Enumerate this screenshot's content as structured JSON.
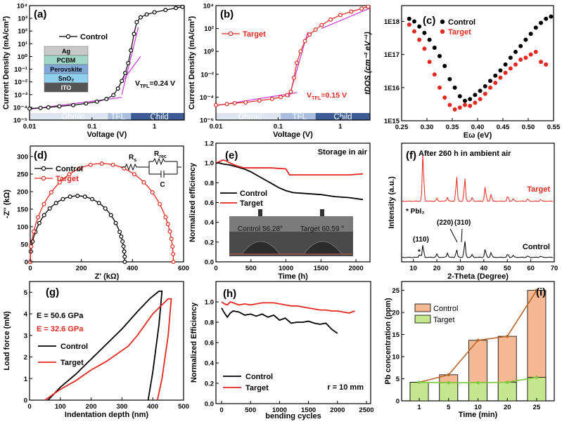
{
  "panels": {
    "a": {
      "letter": "(a)",
      "xlabel": "Voltage (V)",
      "ylabel": "Current Density (mA/cm²)",
      "xticks": [
        "0.01",
        "0.1",
        "1"
      ],
      "yticks": [
        "10⁻⁵",
        "10⁻⁴",
        "10⁻³",
        "10⁻²",
        "10⁻¹",
        "10⁰",
        "10¹",
        "10²",
        "10³",
        "10⁴"
      ],
      "legend": "Control",
      "vtfl": "V_TFL=0.24 V",
      "regions": [
        "Ohmic",
        "TFL",
        "Child"
      ],
      "stack": [
        "Ag",
        "PCBM",
        "Perovskite",
        "SnO₂",
        "ITO"
      ],
      "stack_colors": [
        "#c8c8c8",
        "#9fd7c9",
        "#7fa9d8",
        "#8fd0f0",
        "#555555"
      ]
    },
    "b": {
      "letter": "(b)",
      "xlabel": "Voltage (V)",
      "ylabel": "Current Density (mA/cm²)",
      "xticks": [
        "0.01",
        "0.1",
        "1"
      ],
      "yticks": [
        "10⁻⁶",
        "10⁻⁴",
        "10⁻²",
        "10⁰",
        "10²",
        "10⁴"
      ],
      "legend": "Target",
      "vtfl": "V_TFL=0.15 V",
      "regions": [
        "Ohmic",
        "TFL",
        "Child"
      ]
    },
    "c": {
      "letter": "(c)",
      "xlabel": "Eω (eV)",
      "ylabel": "tDOS (cm⁻³ eV⁻¹)",
      "xticks": [
        "0.25",
        "0.30",
        "0.35",
        "0.40",
        "0.45",
        "0.50",
        "0.55"
      ],
      "yticks": [
        "1E15",
        "1E16",
        "1E17",
        "1E18"
      ],
      "legend": [
        "Control",
        "Target"
      ]
    },
    "d": {
      "letter": "(d)",
      "xlabel": "Z' (kΩ)",
      "ylabel": "-Z'' (kΩ)",
      "xticks": [
        "0",
        "200",
        "400",
        "600"
      ],
      "yticks": [
        "0",
        "50",
        "100",
        "150",
        "200",
        "250",
        "300"
      ],
      "legend": [
        "Control",
        "Target"
      ],
      "circuit": {
        "rs": "R_s",
        "rrec": "R_rec",
        "c": "C"
      }
    },
    "e": {
      "letter": "(e)",
      "title": "Storage in air",
      "xlabel": "Time (h)",
      "ylabel": "Normalized efficiency",
      "xticks": [
        "0",
        "500",
        "1000",
        "1500",
        "2000"
      ],
      "yticks": [
        "0.0",
        "0.2",
        "0.4",
        "0.6",
        "0.8",
        "1.0",
        "1.2"
      ],
      "legend": [
        "Control",
        "Target"
      ],
      "photo_labels": [
        "Control  56.28°",
        "Target  60.59 °"
      ]
    },
    "f": {
      "letter": "(f)",
      "title": "After 260 h in ambient air",
      "xlabel": "2-Theta (Degree)",
      "ylabel": "Intensity (a.u.)",
      "xticks": [
        "10",
        "20",
        "30",
        "40",
        "50",
        "60",
        "70"
      ],
      "series_labels": [
        "Target",
        "Control"
      ],
      "pbi2": "* PbI₂",
      "peaks": [
        "(110)",
        "(220)",
        "(310)"
      ]
    },
    "g": {
      "letter": "(g)",
      "xlabel": "Indentation depth (nm)",
      "ylabel": "Load force (mN)",
      "xticks": [
        "0",
        "100",
        "200",
        "300",
        "400",
        "500"
      ],
      "yticks": [
        "0",
        "1",
        "2",
        "3",
        "4",
        "5"
      ],
      "e_control": "E = 50.6 GPa",
      "e_target": "E = 32.6 GPa",
      "legend": [
        "Control",
        "Target"
      ]
    },
    "h": {
      "letter": "(h)",
      "xlabel": "bending cycles",
      "ylabel": "Normalized Efficiency",
      "xticks": [
        "0",
        "500",
        "1000",
        "1500",
        "2000",
        "2500"
      ],
      "yticks": [
        "0.0",
        "0.2",
        "0.4",
        "0.6",
        "0.8",
        "1.0"
      ],
      "legend": [
        "Control",
        "Target"
      ],
      "note": "r = 10 mm"
    },
    "i": {
      "letter": "(i)",
      "xlabel": "Time (min)",
      "ylabel": "Pb concentration (ppm)",
      "xticks": [
        "1",
        "5",
        "10",
        "20",
        "25"
      ],
      "yticks": [
        "0",
        "5",
        "10",
        "15",
        "20",
        "25"
      ],
      "legend": [
        "Control",
        "Target"
      ]
    }
  },
  "colors": {
    "control": "#000000",
    "target": "#e3281f",
    "magenta": "#c837d8",
    "bar_control": "#f4b893",
    "bar_target": "#c4e68f",
    "line_control": "#b8672a",
    "line_target": "#7bc83a"
  },
  "chart_data": [
    {
      "panel": "a",
      "type": "scatter",
      "xscale": "log",
      "yscale": "log",
      "xlim": [
        0.01,
        3
      ],
      "ylim": [
        1e-05,
        10000.0
      ],
      "series": [
        {
          "name": "Control",
          "x": [
            0.01,
            0.015,
            0.02,
            0.03,
            0.05,
            0.08,
            0.12,
            0.17,
            0.22,
            0.26,
            0.3,
            0.34,
            0.38,
            0.42,
            0.47,
            0.52,
            0.6,
            0.75,
            1.0,
            1.5,
            2.2,
            2.8
          ],
          "y": [
            8e-05,
            9e-05,
            0.0001,
            0.00012,
            0.00015,
            0.0002,
            0.00028,
            0.00045,
            0.0009,
            0.003,
            0.012,
            0.05,
            0.3,
            3,
            60,
            500,
            1200,
            2000,
            3000,
            4500,
            6500,
            8000
          ]
        }
      ]
    },
    {
      "panel": "b",
      "type": "scatter",
      "xscale": "log",
      "yscale": "log",
      "xlim": [
        0.01,
        3
      ],
      "ylim": [
        1e-06,
        10000.0
      ],
      "series": [
        {
          "name": "Target",
          "x": [
            0.01,
            0.015,
            0.02,
            0.03,
            0.05,
            0.08,
            0.11,
            0.14,
            0.16,
            0.18,
            0.2,
            0.23,
            0.27,
            0.32,
            0.4,
            0.5,
            0.7,
            1.0,
            1.5,
            2.2,
            2.8
          ],
          "y": [
            2e-05,
            2.5e-05,
            3e-05,
            3.5e-05,
            5e-05,
            7e-05,
            0.0001,
            0.00015,
            0.0003,
            0.005,
            0.1,
            1,
            8,
            30,
            80,
            200,
            600,
            1500,
            3000,
            5500,
            8000
          ]
        }
      ]
    },
    {
      "panel": "c",
      "type": "scatter",
      "yscale": "log",
      "xlim": [
        0.25,
        0.55
      ],
      "ylim": [
        1000000000000000.0,
        3e+18
      ],
      "series": [
        {
          "name": "Control",
          "x": [
            0.265,
            0.275,
            0.285,
            0.295,
            0.305,
            0.315,
            0.325,
            0.335,
            0.345,
            0.355,
            0.365,
            0.375,
            0.385,
            0.395,
            0.405,
            0.415,
            0.425,
            0.435,
            0.445,
            0.455,
            0.465,
            0.475,
            0.485,
            0.495,
            0.505,
            0.515,
            0.525,
            0.535,
            0.545
          ],
          "y": [
            1.2e+18,
            1e+18,
            7e+17,
            4.5e+17,
            2.8e+17,
            1.6e+17,
            9e+16,
            4.5e+16,
            1.8e+16,
            1e+16,
            5500000000000000.0,
            4000000000000000.0,
            4500000000000000.0,
            6000000000000000.0,
            8000000000000000.0,
            1.1e+16,
            1.6e+16,
            2.3e+16,
            3.3e+16,
            5e+16,
            8e+16,
            1.2e+17,
            1.8e+17,
            2.8e+17,
            4.2e+17,
            6.5e+17,
            9e+17,
            1.2e+18,
            1.4e+18
          ]
        },
        {
          "name": "Target",
          "x": [
            0.265,
            0.275,
            0.285,
            0.295,
            0.305,
            0.315,
            0.325,
            0.335,
            0.345,
            0.355,
            0.365,
            0.375,
            0.385,
            0.395,
            0.405,
            0.415,
            0.425,
            0.435,
            0.445,
            0.455,
            0.465,
            0.475,
            0.485,
            0.495,
            0.505,
            0.515,
            0.525,
            0.535
          ],
          "y": [
            8e+17,
            5e+17,
            2.8e+17,
            1.5e+17,
            6e+16,
            2.5e+16,
            1e+16,
            5000000000000000.0,
            3000000000000000.0,
            2200000000000000.0,
            2500000000000000.0,
            3000000000000000.0,
            2800000000000000.0,
            3500000000000000.0,
            4500000000000000.0,
            6500000000000000.0,
            1e+16,
            1.4e+16,
            2e+16,
            2.8e+16,
            3.8e+16,
            5e+16,
            7e+16,
            8e+16,
            1e+17,
            1.2e+17,
            6e+16,
            5e+16
          ]
        }
      ]
    },
    {
      "panel": "d",
      "type": "scatter",
      "xlim": [
        0,
        600
      ],
      "ylim": [
        0,
        330
      ],
      "series": [
        {
          "name": "Control",
          "diameter": 370,
          "peak": 188
        },
        {
          "name": "Target",
          "diameter": 560,
          "peak": 280
        }
      ]
    },
    {
      "panel": "e",
      "type": "line",
      "xlim": [
        0,
        2200
      ],
      "ylim": [
        0,
        1.2
      ],
      "series": [
        {
          "name": "Control",
          "x": [
            0,
            50,
            100,
            200,
            300,
            400,
            500,
            600,
            700,
            800,
            900,
            1000,
            1100,
            1300,
            1500,
            1700,
            1900,
            2100
          ],
          "y": [
            1.0,
            1.0,
            0.99,
            0.98,
            0.96,
            0.94,
            0.91,
            0.87,
            0.83,
            0.79,
            0.75,
            0.72,
            0.7,
            0.69,
            0.68,
            0.66,
            0.65,
            0.63
          ]
        },
        {
          "name": "Target",
          "x": [
            0,
            100,
            150,
            200,
            300,
            400,
            600,
            800,
            1000,
            1050,
            1100,
            1300,
            1500,
            1700,
            1900,
            2100
          ],
          "y": [
            1.0,
            1.03,
            1.02,
            1.0,
            0.97,
            0.95,
            0.95,
            0.95,
            0.94,
            0.88,
            0.88,
            0.88,
            0.88,
            0.88,
            0.88,
            0.89
          ]
        }
      ]
    },
    {
      "panel": "f",
      "type": "line",
      "xlim": [
        5,
        70
      ],
      "series": [
        {
          "name": "Target",
          "peaks_x": [
            14.1,
            20.0,
            24.5,
            28.4,
            31.9,
            35.0,
            40.6,
            43.1,
            50.2,
            52.5,
            58.7,
            64.2
          ],
          "peaks_h": [
            1.0,
            0.06,
            0.08,
            0.52,
            0.48,
            0.07,
            0.3,
            0.15,
            0.11,
            0.05,
            0.05,
            0.04
          ]
        },
        {
          "name": "Control",
          "peaks_x": [
            12.7,
            14.1,
            20.0,
            24.5,
            28.4,
            31.9,
            35.0,
            40.6,
            43.1,
            50.2,
            52.5,
            58.7,
            64.2
          ],
          "peaks_h": [
            0.12,
            0.45,
            0.12,
            0.16,
            0.28,
            0.6,
            0.1,
            0.3,
            0.18,
            0.12,
            0.07,
            0.05,
            0.05
          ]
        }
      ]
    },
    {
      "panel": "g",
      "type": "line",
      "xlim": [
        0,
        500
      ],
      "ylim": [
        0,
        5.5
      ],
      "series": [
        {
          "name": "Control",
          "x": [
            60,
            100,
            150,
            200,
            250,
            300,
            350,
            390,
            420,
            430,
            420,
            400,
            385
          ],
          "y": [
            0,
            0.6,
            1.2,
            1.9,
            2.6,
            3.3,
            4.1,
            4.7,
            5.05,
            5.05,
            3.5,
            1.3,
            0
          ]
        },
        {
          "name": "Target",
          "x": [
            50,
            100,
            150,
            200,
            250,
            300,
            320,
            350,
            400,
            450,
            460,
            450,
            430,
            415
          ],
          "y": [
            0,
            0.5,
            0.9,
            1.4,
            1.8,
            2.3,
            2.5,
            3.0,
            4.0,
            4.7,
            4.7,
            3.0,
            1.0,
            0
          ]
        }
      ]
    },
    {
      "panel": "h",
      "type": "line",
      "xlim": [
        0,
        2500
      ],
      "ylim": [
        0,
        1.2
      ],
      "series": [
        {
          "name": "Control",
          "x": [
            0,
            50,
            100,
            150,
            200,
            300,
            400,
            500,
            600,
            700,
            800,
            900,
            1000,
            1100,
            1200,
            1300,
            1400,
            1500,
            1600,
            1700,
            1800,
            1900,
            2000
          ],
          "y": [
            0.94,
            0.89,
            0.85,
            0.89,
            0.91,
            0.9,
            0.87,
            0.88,
            0.86,
            0.88,
            0.85,
            0.87,
            0.82,
            0.84,
            0.79,
            0.8,
            0.8,
            0.81,
            0.79,
            0.78,
            0.79,
            0.73,
            0.69
          ]
        },
        {
          "name": "Target",
          "x": [
            0,
            50,
            100,
            150,
            200,
            300,
            400,
            500,
            600,
            700,
            800,
            900,
            1000,
            1100,
            1200,
            1300,
            1400,
            1500,
            1600,
            1700,
            1800,
            1900,
            2000,
            2100,
            2200,
            2300
          ],
          "y": [
            1.0,
            0.98,
            0.97,
            1.0,
            0.99,
            0.97,
            0.98,
            0.97,
            0.98,
            0.99,
            0.99,
            0.99,
            0.98,
            0.97,
            0.96,
            0.96,
            0.95,
            0.94,
            0.93,
            0.92,
            0.92,
            0.91,
            0.91,
            0.9,
            0.89,
            0.91
          ]
        }
      ]
    },
    {
      "panel": "i",
      "type": "bar",
      "categories": [
        "1",
        "5",
        "10",
        "20",
        "25"
      ],
      "ylim": [
        0,
        27
      ],
      "series": [
        {
          "name": "Control",
          "values": [
            4.2,
            5.9,
            13.7,
            14.6,
            25.0
          ]
        },
        {
          "name": "Target",
          "values": [
            4.2,
            4.1,
            4.1,
            4.2,
            5.3
          ]
        }
      ]
    }
  ]
}
